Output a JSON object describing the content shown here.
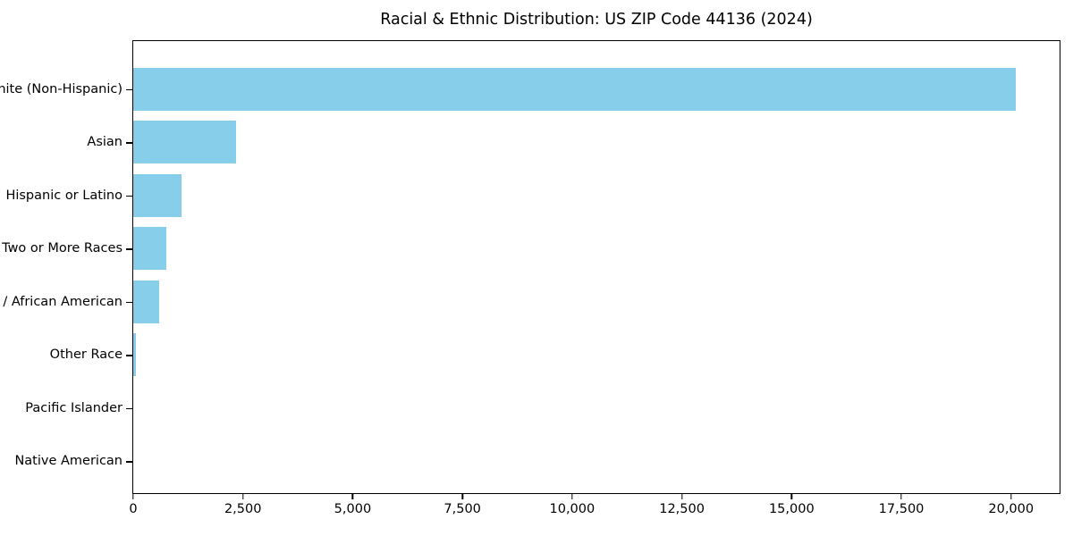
{
  "chart_data": {
    "type": "bar",
    "orientation": "horizontal",
    "title": "Racial & Ethnic Distribution: US ZIP Code 44136 (2024)",
    "categories": [
      "White (Non-Hispanic)",
      "Asian",
      "Hispanic or Latino",
      "Two or More Races",
      "Black / African American",
      "Other Race",
      "Pacific Islander",
      "Native American"
    ],
    "values": [
      20100,
      2350,
      1100,
      750,
      600,
      70,
      0,
      0
    ],
    "xlabel": "",
    "ylabel": "",
    "xlim": [
      0,
      21105
    ],
    "x_tick_values": [
      0,
      2500,
      5000,
      7500,
      10000,
      12500,
      15000,
      17500,
      20000
    ],
    "x_tick_labels": [
      "0",
      "2,500",
      "5,000",
      "7,500",
      "10,000",
      "12,500",
      "15,000",
      "17,500",
      "20,000"
    ],
    "grid": false,
    "legend": "none",
    "colors": {
      "bar": "#87CEEB",
      "text": "#000000",
      "spine": "#000000",
      "background": "#ffffff"
    }
  }
}
